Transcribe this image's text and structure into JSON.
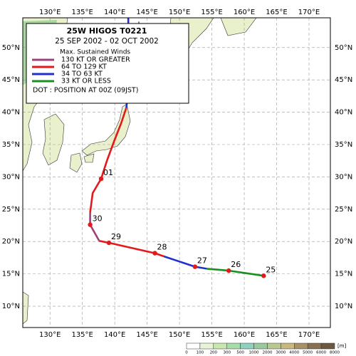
{
  "map": {
    "title": "25W  HIGOS  T0221",
    "period": "25 SEP 2002 - 02 OCT 2002",
    "legend_title": "Max. Sustained Winds",
    "legend": [
      {
        "label": "130 KT OR GREATER",
        "color": "#a0407a"
      },
      {
        "label": "64 TO 129 KT",
        "color": "#e41a1a"
      },
      {
        "label": "34 TO 63 KT",
        "color": "#2030d0"
      },
      {
        "label": "33 KT OR LESS",
        "color": "#1a9020"
      }
    ],
    "dot_note": "DOT : POSITION AT 00Z (09JST)",
    "xlim": [
      125.8,
      173.3
    ],
    "ylim": [
      6.7,
      54.6
    ],
    "xticks": [
      {
        "value": 130,
        "label": "130°E"
      },
      {
        "value": 135,
        "label": "135°E"
      },
      {
        "value": 140,
        "label": "140°E"
      },
      {
        "value": 145,
        "label": "145°E"
      },
      {
        "value": 150,
        "label": "150°E"
      },
      {
        "value": 155,
        "label": "155°E"
      },
      {
        "value": 160,
        "label": "160°E"
      },
      {
        "value": 165,
        "label": "165°E"
      },
      {
        "value": 170,
        "label": "170°E"
      }
    ],
    "yticks": [
      {
        "value": 10,
        "label": "10°N"
      },
      {
        "value": 15,
        "label": "15°N"
      },
      {
        "value": 20,
        "label": "20°N"
      },
      {
        "value": 25,
        "label": "25°N"
      },
      {
        "value": 30,
        "label": "30°N"
      },
      {
        "value": 35,
        "label": "35°N"
      },
      {
        "value": 40,
        "label": "40°N"
      },
      {
        "value": 45,
        "label": "45°N"
      },
      {
        "value": 50,
        "label": "50°N"
      }
    ],
    "segments": [
      {
        "color": "#1a9020",
        "lon": [
          163.0,
          157.6,
          154.2
        ],
        "lat": [
          14.7,
          15.5,
          15.8
        ]
      },
      {
        "color": "#2030d0",
        "lon": [
          154.2,
          152.4,
          147.6
        ],
        "lat": [
          15.8,
          16.1,
          17.7
        ]
      },
      {
        "color": "#e41a1a",
        "lon": [
          147.6,
          146.2,
          139.1,
          137.6
        ],
        "lat": [
          17.7,
          18.2,
          19.8,
          20.1
        ]
      },
      {
        "color": "#a0407a",
        "lon": [
          137.6,
          136.2,
          136.2
        ],
        "lat": [
          20.1,
          22.6,
          24.5
        ]
      },
      {
        "color": "#e41a1a",
        "lon": [
          136.2,
          136.6,
          137.9,
          138.8,
          139.9,
          141.0,
          141.8
        ],
        "lat": [
          24.5,
          27.5,
          29.7,
          32.5,
          35.5,
          38.3,
          40.7
        ]
      },
      {
        "color": "#2030d0",
        "lon": [
          141.8,
          142.1,
          142.1
        ],
        "lat": [
          40.7,
          43.6,
          54.6
        ]
      }
    ],
    "positions": [
      {
        "label": "25",
        "lon": 163.0,
        "lat": 14.7
      },
      {
        "label": "26",
        "lon": 157.6,
        "lat": 15.5
      },
      {
        "label": "27",
        "lon": 152.4,
        "lat": 16.1
      },
      {
        "label": "28",
        "lon": 146.2,
        "lat": 18.2
      },
      {
        "label": "29",
        "lon": 139.1,
        "lat": 19.8
      },
      {
        "label": "30",
        "lon": 136.2,
        "lat": 22.6
      },
      {
        "label": "01",
        "lon": 137.9,
        "lat": 29.7
      }
    ],
    "colorbar": {
      "labels": [
        0,
        100,
        200,
        300,
        500,
        1000,
        2000,
        3000,
        4000,
        5000,
        6000,
        8000
      ],
      "colors": [
        "#ffffff",
        "#e8f4d8",
        "#c8e8b0",
        "#a8dca8",
        "#90d0c0",
        "#9cc8a0",
        "#b8c890",
        "#c8b880",
        "#a89068",
        "#887050",
        "#6a5840"
      ],
      "unit": "[m]"
    }
  }
}
